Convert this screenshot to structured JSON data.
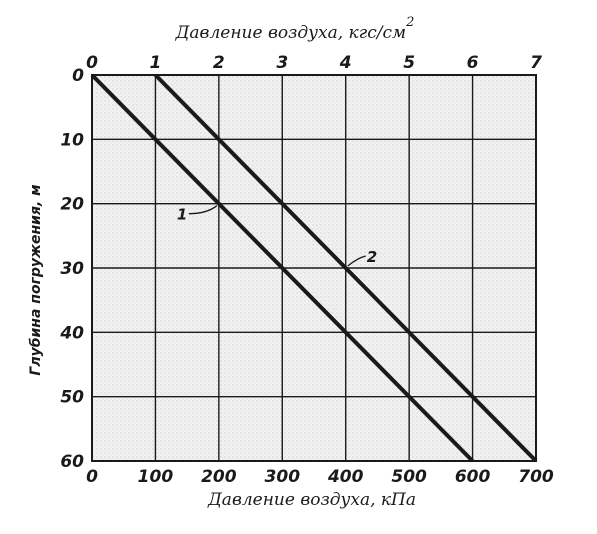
{
  "chart_data": {
    "type": "line",
    "top_axis": {
      "title": "Давление воздуха, кгс/см",
      "title_superscript": "2",
      "ticks": [
        "0",
        "1",
        "2",
        "3",
        "4",
        "5",
        "6",
        "7"
      ],
      "range": [
        0,
        7
      ]
    },
    "x_axis": {
      "title": "Давление воздуха, кПа",
      "ticks": [
        "0",
        "100",
        "200",
        "300",
        "400",
        "500",
        "600",
        "700"
      ],
      "range": [
        0,
        700
      ]
    },
    "y_axis": {
      "title": "Глубина погружения, м",
      "ticks": [
        "0",
        "10",
        "20",
        "30",
        "40",
        "50",
        "60"
      ],
      "range": [
        0,
        60
      ],
      "inverted": true
    },
    "grid": true,
    "series": [
      {
        "name": "1",
        "x": [
          0,
          600
        ],
        "y": [
          0,
          60
        ]
      },
      {
        "name": "2",
        "x": [
          100,
          700
        ],
        "y": [
          0,
          60
        ]
      }
    ]
  }
}
